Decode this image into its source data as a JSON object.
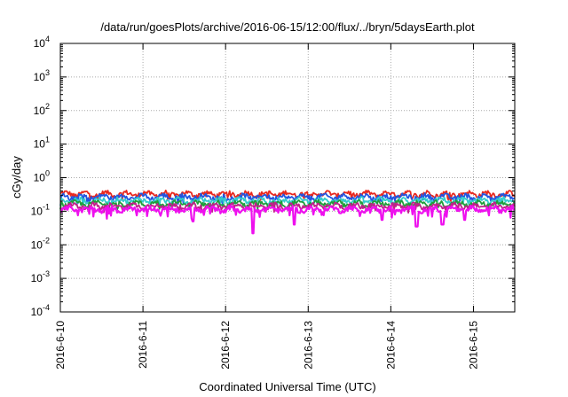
{
  "chart_data": {
    "type": "line",
    "title": "/data/run/goesPlots/archive/2016-06-15/12:00/flux/../bryn/5daysEarth.plot",
    "xlabel": "Coordinated Universal Time (UTC)",
    "ylabel": "cGy/day",
    "yscale": "log",
    "ylim": [
      0.0001,
      10000
    ],
    "y_ticks": [
      {
        "value": 0.0001,
        "base": "10",
        "exp": "-4"
      },
      {
        "value": 0.001,
        "base": "10",
        "exp": "-3"
      },
      {
        "value": 0.01,
        "base": "10",
        "exp": "-2"
      },
      {
        "value": 0.1,
        "base": "10",
        "exp": "-1"
      },
      {
        "value": 1,
        "base": "10",
        "exp": "0"
      },
      {
        "value": 10,
        "base": "10",
        "exp": "1"
      },
      {
        "value": 100,
        "base": "10",
        "exp": "2"
      },
      {
        "value": 1000,
        "base": "10",
        "exp": "3"
      },
      {
        "value": 10000,
        "base": "10",
        "exp": "4"
      }
    ],
    "xlim": [
      "2016-06-10T00:00",
      "2016-06-15T12:00"
    ],
    "x_ticks": [
      "2016-6-10",
      "2016-6-11",
      "2016-6-12",
      "2016-6-13",
      "2016-6-14",
      "2016-6-15"
    ],
    "grid": true,
    "legend": "none",
    "series": [
      {
        "color": "#e8281e",
        "level": 0.33,
        "dip_floor": 0.2
      },
      {
        "color": "#2255e0",
        "level": 0.27,
        "dip_floor": 0.16
      },
      {
        "color": "#33cccc",
        "level": 0.21,
        "dip_floor": 0.14
      },
      {
        "color": "#1f9e3a",
        "level": 0.17,
        "dip_floor": 0.11
      },
      {
        "color": "#c0208a",
        "level": 0.145,
        "dip_floor": 0.09
      },
      {
        "color": "#ee10ee",
        "level": 0.115,
        "dip_floor": 0.06
      }
    ],
    "notable_dips": [
      {
        "x": "2016-06-11T14:30",
        "y": 0.05
      },
      {
        "x": "2016-06-12T08:00",
        "y": 0.022
      },
      {
        "x": "2016-06-12T20:00",
        "y": 0.04
      },
      {
        "x": "2016-06-13T21:30",
        "y": 0.055
      },
      {
        "x": "2016-06-14T07:30",
        "y": 0.035
      },
      {
        "x": "2016-06-14T15:00",
        "y": 0.04
      },
      {
        "x": "2016-06-14T21:30",
        "y": 0.055
      }
    ]
  }
}
